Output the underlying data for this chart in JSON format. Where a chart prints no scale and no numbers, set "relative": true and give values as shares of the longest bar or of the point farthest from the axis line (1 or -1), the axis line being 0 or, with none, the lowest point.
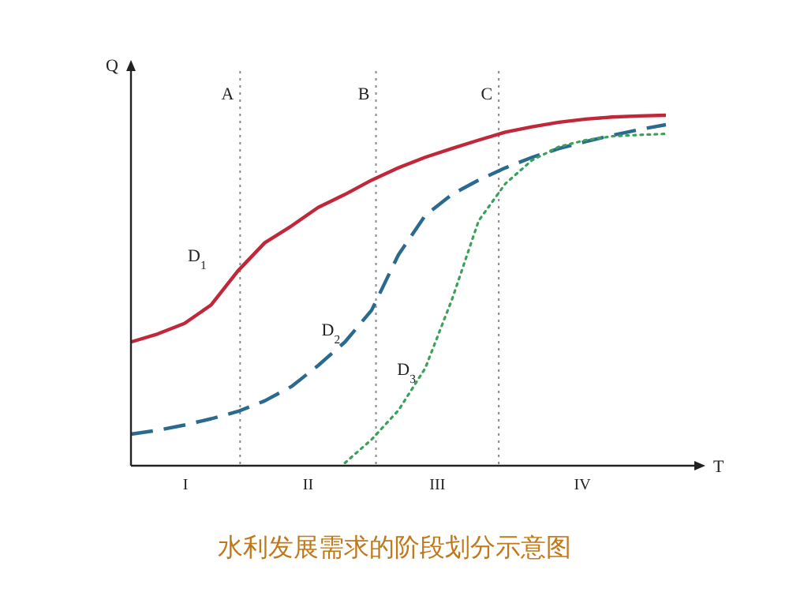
{
  "chart_data": {
    "type": "line",
    "title": "水利发展需求的阶段划分示意图",
    "xlabel": "T",
    "ylabel": "Q",
    "relative": true,
    "grid": false,
    "legend": false,
    "categories": [
      null,
      null,
      null,
      null,
      null,
      null,
      null,
      null,
      null,
      null,
      null,
      null,
      null,
      null,
      null,
      null,
      null,
      null,
      null,
      null,
      null
    ],
    "series": [
      {
        "name": "D$_{1}$",
        "color": "#c0283a",
        "line_style": "solid",
        "values": [
          0.353,
          0.376,
          0.406,
          0.459,
          0.556,
          0.636,
          0.684,
          0.737,
          0.774,
          0.815,
          0.85,
          0.88,
          0.905,
          0.929,
          0.952,
          0.967,
          0.98,
          0.989,
          0.995,
          0.998,
          1.0
        ]
      },
      {
        "name": "D$_{2}$",
        "color": "#2a6a8e",
        "line_style": "dashed",
        "values": [
          0.09,
          0.101,
          0.116,
          0.134,
          0.155,
          0.185,
          0.226,
          0.286,
          0.353,
          0.444,
          0.602,
          0.714,
          0.774,
          0.815,
          0.85,
          0.88,
          0.905,
          0.925,
          0.943,
          0.959,
          0.973
        ]
      },
      {
        "name": "D$_{3}$",
        "color": "#3aa05a",
        "line_style": "dotted",
        "values": [
          null,
          null,
          null,
          null,
          null,
          null,
          null,
          null,
          0.008,
          0.075,
          0.158,
          0.278,
          0.474,
          0.699,
          0.805,
          0.872,
          0.91,
          0.929,
          0.94,
          0.944,
          0.947
        ]
      }
    ],
    "annotations": [
      "A",
      "B",
      "C",
      "I",
      "II",
      "III",
      "IV"
    ]
  }
}
